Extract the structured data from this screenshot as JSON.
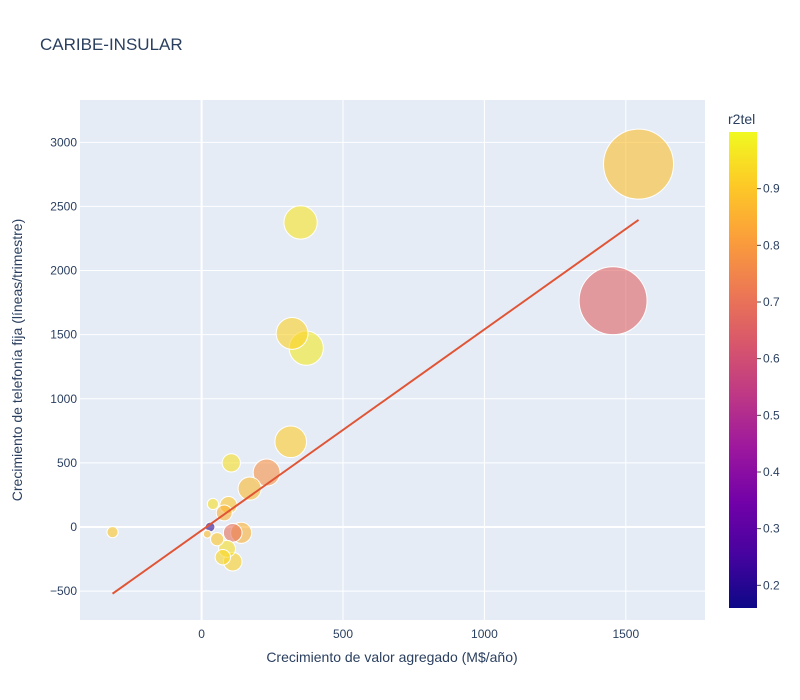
{
  "chart_data": {
    "type": "scatter",
    "title": "CARIBE-INSULAR",
    "xlabel": "Crecimiento de valor agregado (M$/año)",
    "ylabel": "Crecimiento de telefonía fija (líneas/trimestre)",
    "xlim": [
      -430,
      1780
    ],
    "ylim": [
      -725,
      3330
    ],
    "x_ticks": [
      0,
      500,
      1000,
      1500
    ],
    "x_tick_labels": [
      "0",
      "500",
      "1000",
      "1500"
    ],
    "y_ticks": [
      -500,
      0,
      500,
      1000,
      1500,
      2000,
      2500,
      3000
    ],
    "y_tick_labels": [
      "−500",
      "0",
      "500",
      "1000",
      "1500",
      "2000",
      "2500",
      "3000"
    ],
    "grid": true,
    "colorbar": {
      "title": "r2tel",
      "range": [
        0.16,
        1.0
      ],
      "ticks": [
        0.2,
        0.3,
        0.4,
        0.5,
        0.6,
        0.7,
        0.8,
        0.9
      ],
      "tick_labels": [
        "0.2",
        "0.3",
        "0.4",
        "0.5",
        "0.6",
        "0.7",
        "0.8",
        "0.9"
      ],
      "colorscale": [
        "#0d0887",
        "#46039f",
        "#7201a8",
        "#9c179e",
        "#bd3786",
        "#d8576b",
        "#ed7953",
        "#fb9f3a",
        "#fdca26",
        "#f0f921"
      ]
    },
    "points": [
      {
        "x": 1545,
        "y": 2830,
        "size": 1545,
        "color": 0.88
      },
      {
        "x": 1455,
        "y": 1765,
        "size": 1455,
        "color": 0.66
      },
      {
        "x": 350,
        "y": 2375,
        "size": 350,
        "color": 0.96
      },
      {
        "x": 370,
        "y": 1395,
        "size": 370,
        "color": 0.97
      },
      {
        "x": 320,
        "y": 1510,
        "size": 320,
        "color": 0.92
      },
      {
        "x": 315,
        "y": 665,
        "size": 315,
        "color": 0.91
      },
      {
        "x": 230,
        "y": 425,
        "size": 230,
        "color": 0.78
      },
      {
        "x": 170,
        "y": 300,
        "size": 170,
        "color": 0.87
      },
      {
        "x": 105,
        "y": 500,
        "size": 105,
        "color": 0.95
      },
      {
        "x": 95,
        "y": 170,
        "size": 95,
        "color": 0.9
      },
      {
        "x": 80,
        "y": 110,
        "size": 80,
        "color": 0.85
      },
      {
        "x": 110,
        "y": -45,
        "size": 110,
        "color": 0.7
      },
      {
        "x": 90,
        "y": -170,
        "size": 90,
        "color": 0.95
      },
      {
        "x": 75,
        "y": -235,
        "size": 75,
        "color": 0.93
      },
      {
        "x": 40,
        "y": 180,
        "size": 40,
        "color": 0.95
      },
      {
        "x": 55,
        "y": -95,
        "size": 55,
        "color": 0.9
      },
      {
        "x": 140,
        "y": -45,
        "size": 140,
        "color": 0.85
      },
      {
        "x": 20,
        "y": -55,
        "size": 20,
        "color": 0.88
      },
      {
        "x": 30,
        "y": 0,
        "size": 30,
        "color": 0.2
      },
      {
        "x": 110,
        "y": -270,
        "size": 110,
        "color": 0.92
      },
      {
        "x": -315,
        "y": -40,
        "size": 40,
        "color": 0.9
      }
    ],
    "trendline": {
      "x": [
        -315,
        1545
      ],
      "y": [
        -520,
        2395
      ],
      "color": "#e05536"
    }
  }
}
